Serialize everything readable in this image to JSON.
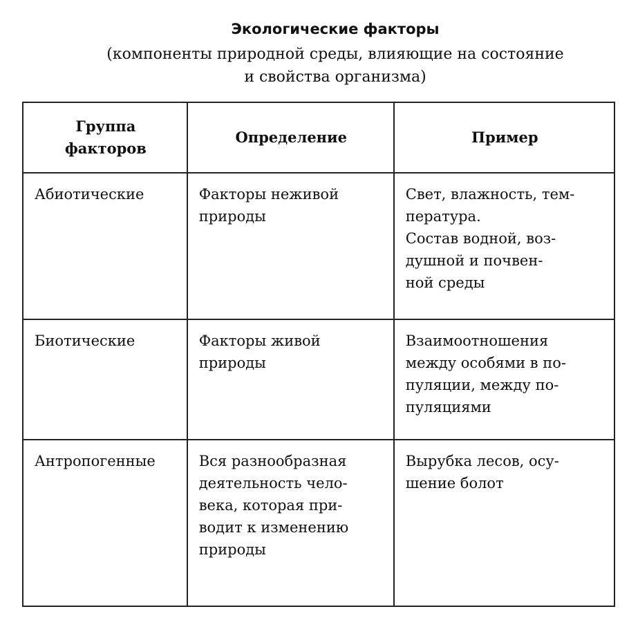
{
  "title": "Экологические факторы",
  "subtitle": "(компоненты природной среды, влияющие на состояние\nи свойства организма)",
  "table": {
    "headers": [
      "Группа\nфакторов",
      "Определение",
      "Пример"
    ],
    "rows": [
      [
        "Абиотические",
        "Факторы неживой\nприроды",
        "Свет, влажность, тем-\nпература.\nСостав водной, воз-\nдушной и почвен-\nной среды"
      ],
      [
        "Биотические",
        "Факторы живой\nприроды",
        "Взаимоотношения\nмежду особями в по-\nпуляции, между по-\nпуляциями"
      ],
      [
        "Антропогенные",
        "Вся разнообразная\nдеятельность чело-\nвека, которая при-\nводит к изменению\nприроды",
        "Вырубка лесов, осу-\nшение болот"
      ]
    ]
  }
}
